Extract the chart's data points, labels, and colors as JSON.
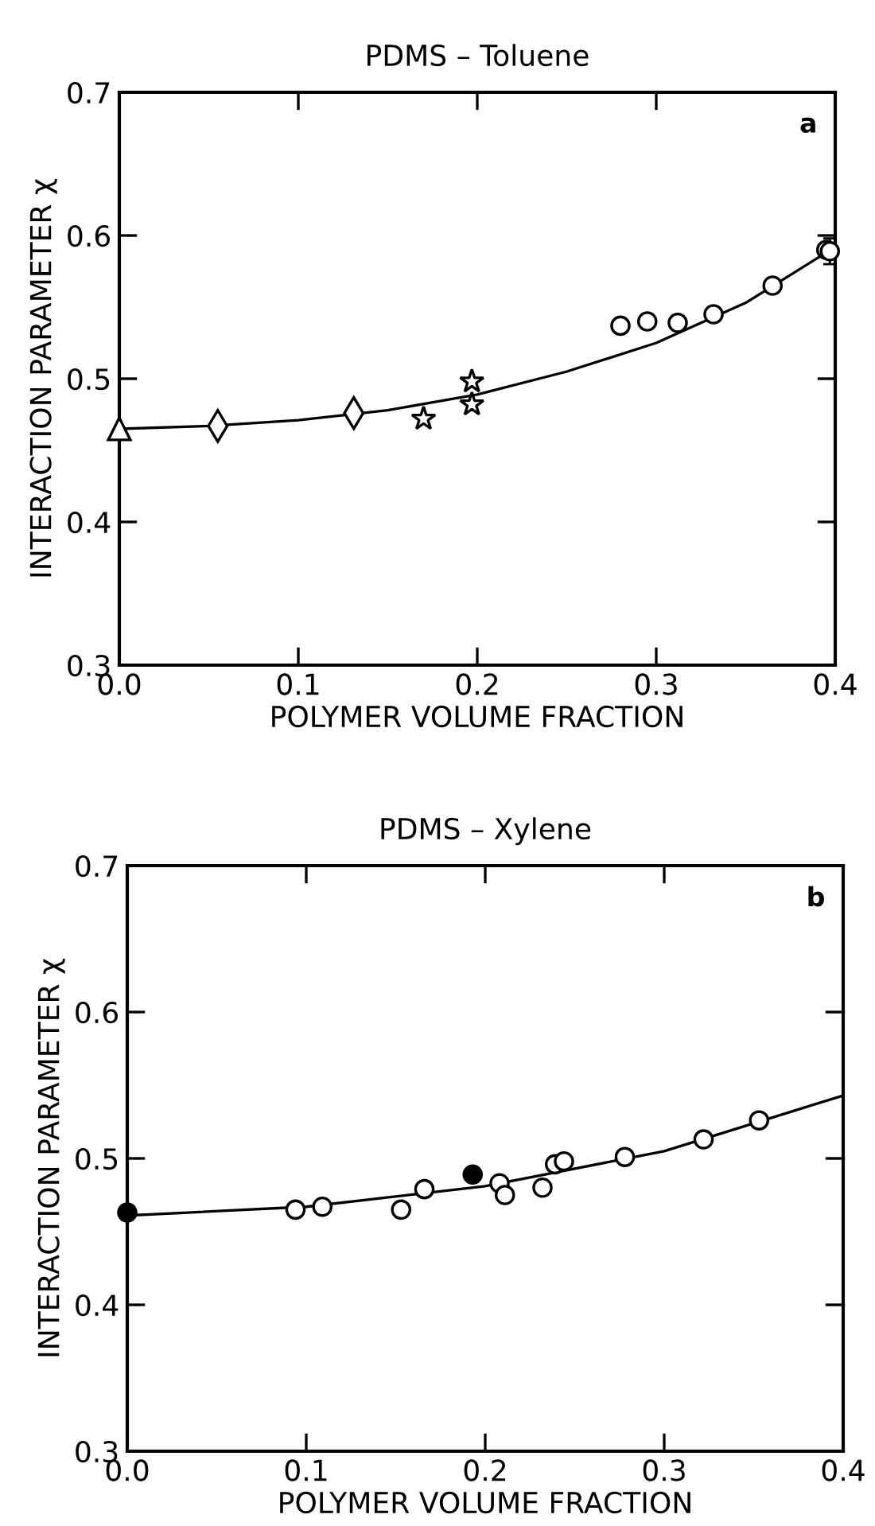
{
  "chart_data": [
    {
      "type": "scatter",
      "title": "PDMS – Toluene",
      "xlabel": "POLYMER VOLUME FRACTION",
      "ylabel": "INTERACTION PARAMETER χ",
      "annotations": [
        "a"
      ],
      "xlim": [
        0,
        0.4
      ],
      "ylim": [
        0.3,
        0.7
      ],
      "xticks": [
        {
          "value": 0,
          "label": "0.0"
        },
        0.1,
        0.2,
        0.3,
        0.4
      ],
      "yticks": [
        0.3,
        0.4,
        0.5,
        0.6,
        0.7
      ],
      "grid": false,
      "legend": false,
      "series": [
        {
          "type": "scatter",
          "marker": "triangle",
          "color": "#ffffff",
          "x": [
            0.0
          ],
          "values": [
            0.465
          ]
        },
        {
          "type": "scatter",
          "marker": "diamond",
          "color": "#ffffff",
          "x": [
            0.055,
            0.131
          ],
          "values": [
            0.467,
            0.476
          ]
        },
        {
          "type": "scatter",
          "marker": "star",
          "color": "#ffffff",
          "x": [
            0.17,
            0.197,
            0.197
          ],
          "values": [
            0.472,
            0.482,
            0.498
          ]
        },
        {
          "type": "scatter",
          "marker": "circle",
          "color": "#ffffff",
          "x": [
            0.28,
            0.295,
            0.312,
            0.332,
            0.365,
            0.395,
            0.397
          ],
          "values": [
            0.537,
            0.54,
            0.539,
            0.545,
            0.565,
            0.59,
            0.589
          ],
          "errors": [
            null,
            null,
            null,
            null,
            null,
            null,
            0.009
          ]
        },
        {
          "type": "line",
          "marker": "none",
          "color": "#000000",
          "x": [
            0.0,
            0.05,
            0.1,
            0.15,
            0.2,
            0.25,
            0.3,
            0.35,
            0.4
          ],
          "values": [
            0.465,
            0.467,
            0.471,
            0.478,
            0.489,
            0.505,
            0.525,
            0.553,
            0.592
          ]
        }
      ]
    },
    {
      "type": "scatter",
      "title": "PDMS – Xylene",
      "xlabel": "POLYMER VOLUME FRACTION",
      "ylabel": "INTERACTION PARAMETER χ",
      "annotations": [
        "b"
      ],
      "xlim": [
        0,
        0.4
      ],
      "ylim": [
        0.3,
        0.7
      ],
      "xticks": [
        {
          "value": 0,
          "label": "0.0"
        },
        0.1,
        0.2,
        0.3,
        0.4
      ],
      "yticks": [
        0.3,
        0.4,
        0.5,
        0.6,
        0.7
      ],
      "grid": false,
      "legend": false,
      "series": [
        {
          "type": "scatter",
          "marker": "circle",
          "color": "#000000",
          "x": [
            0.0,
            0.193
          ],
          "values": [
            0.463,
            0.489
          ]
        },
        {
          "type": "scatter",
          "marker": "circle",
          "color": "#ffffff",
          "x": [
            0.094,
            0.109,
            0.153,
            0.166,
            0.208,
            0.211,
            0.232,
            0.239,
            0.244,
            0.278,
            0.322,
            0.353
          ],
          "values": [
            0.465,
            0.467,
            0.465,
            0.479,
            0.483,
            0.475,
            0.48,
            0.496,
            0.498,
            0.501,
            0.513,
            0.526
          ]
        },
        {
          "type": "line",
          "marker": "none",
          "color": "#000000",
          "x": [
            0.0,
            0.1,
            0.2,
            0.3,
            0.35,
            0.4
          ],
          "values": [
            0.461,
            0.467,
            0.481,
            0.505,
            0.524,
            0.543
          ]
        }
      ]
    }
  ]
}
